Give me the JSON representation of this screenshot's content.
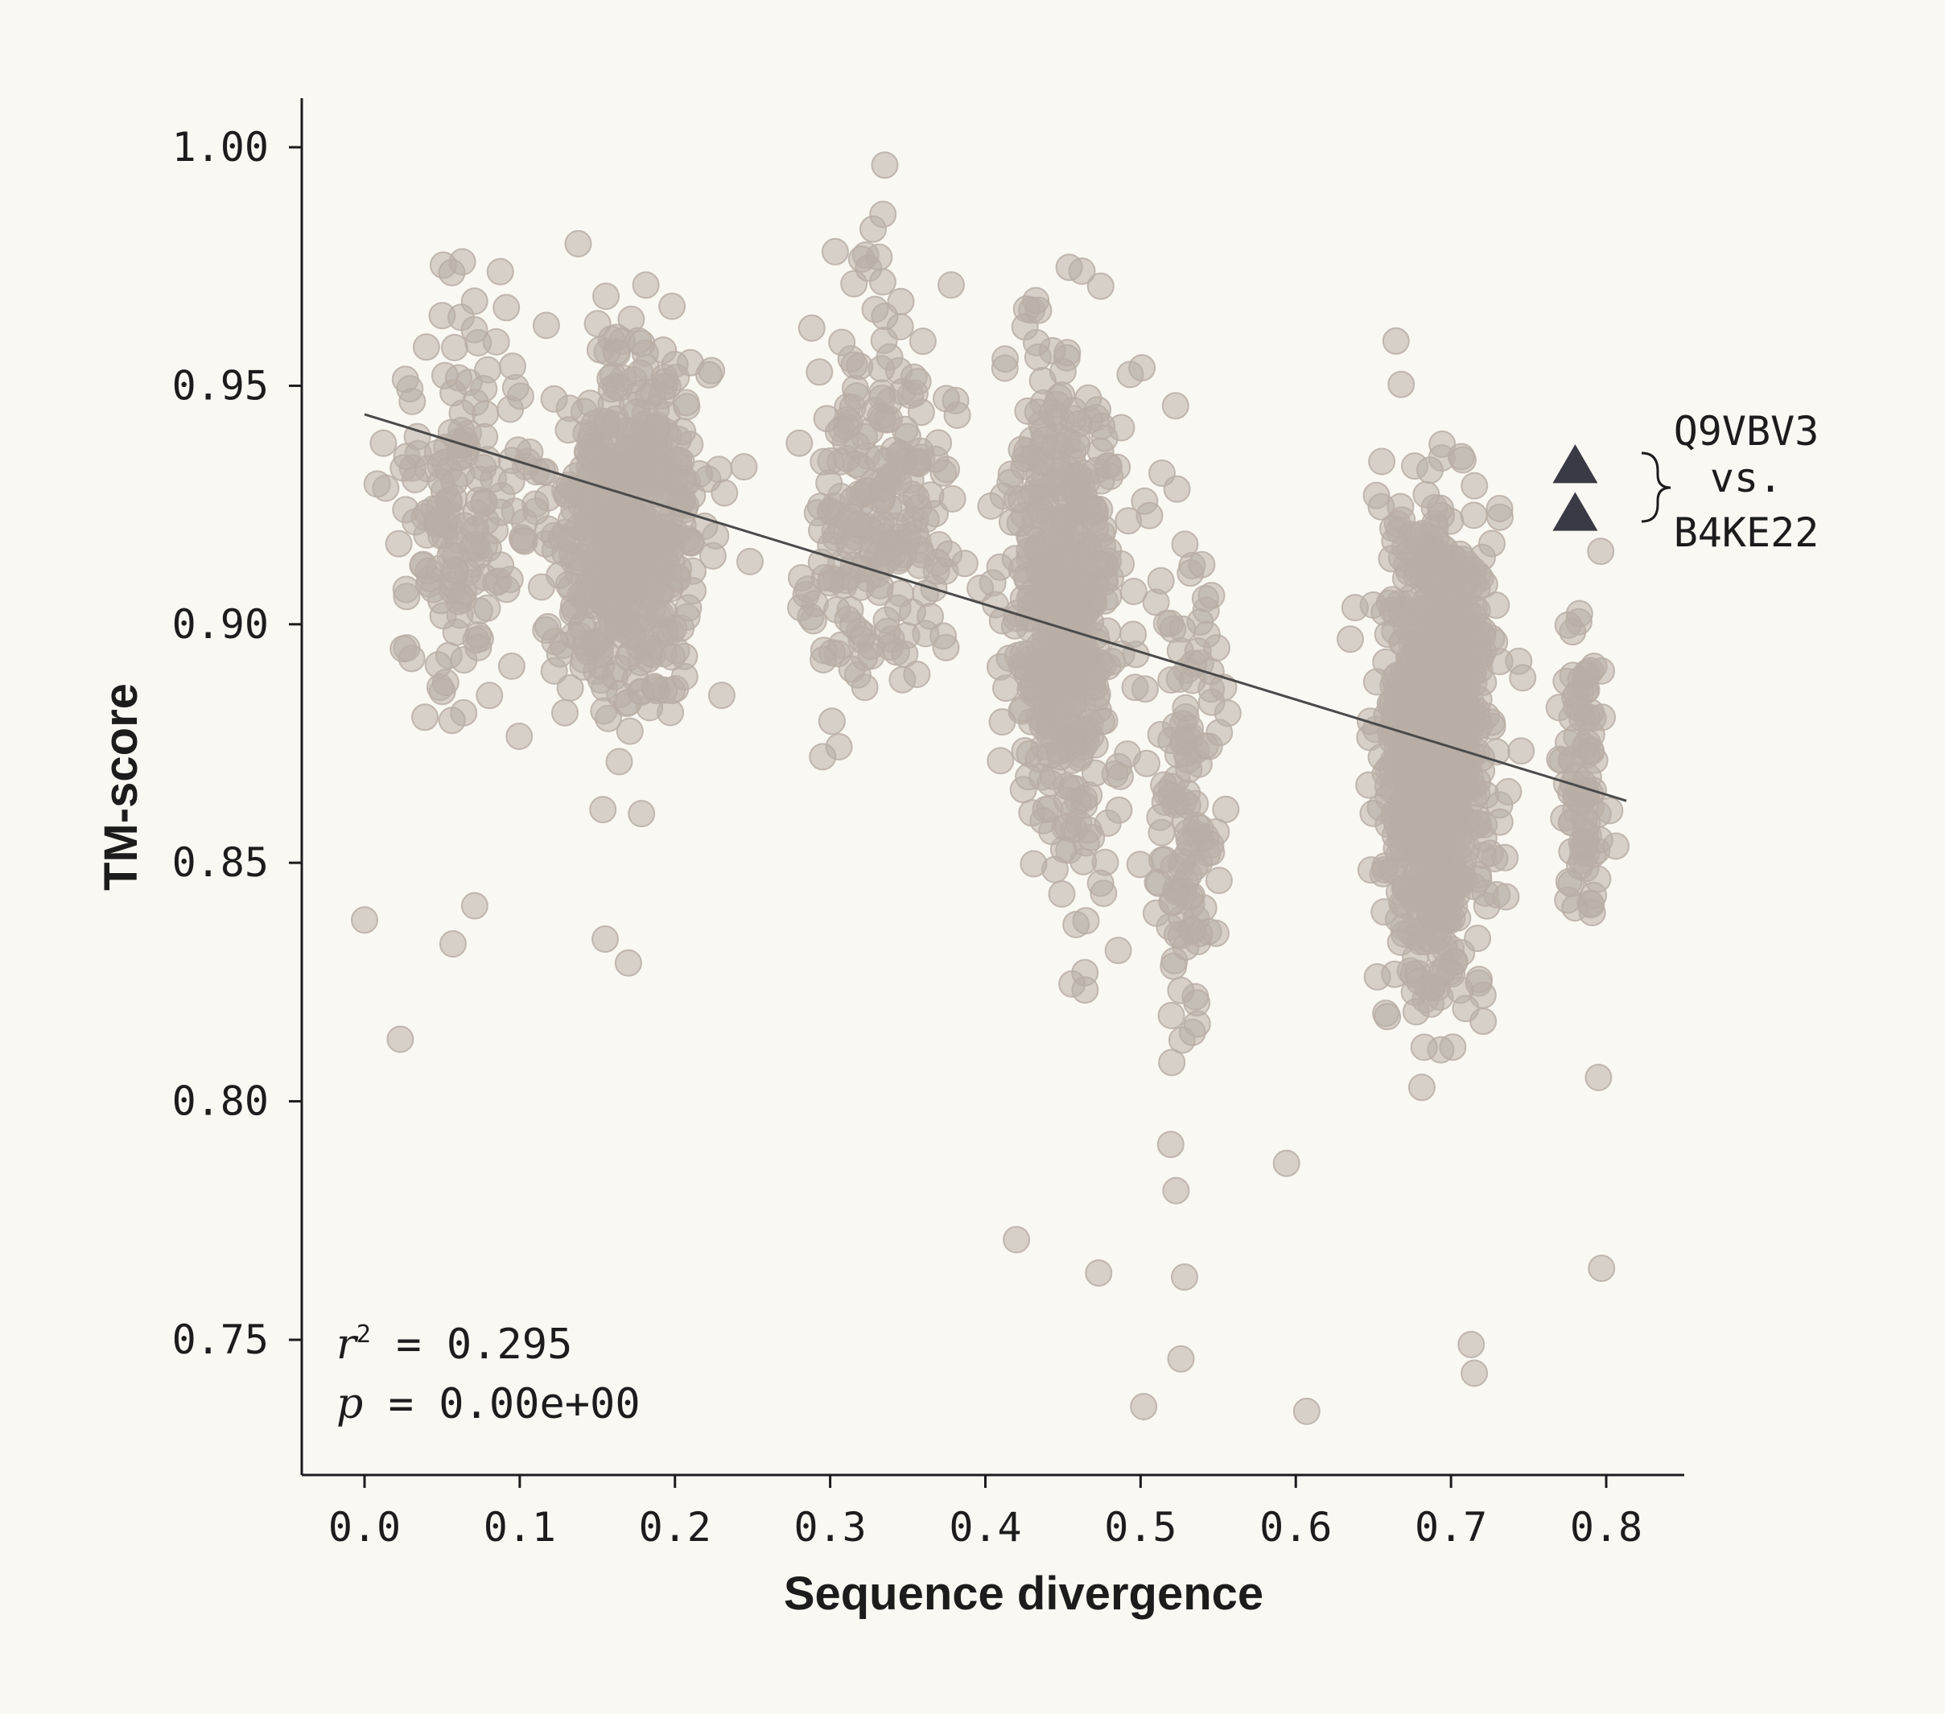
{
  "chart_data": {
    "type": "scatter",
    "xlabel": "Sequence divergence",
    "ylabel": "TM-score",
    "xlim": [
      -0.04,
      0.85
    ],
    "ylim": [
      0.72,
      1.01
    ],
    "x_ticks": [
      "0.0",
      "0.1",
      "0.2",
      "0.3",
      "0.4",
      "0.5",
      "0.6",
      "0.7",
      "0.8"
    ],
    "y_ticks": [
      "0.75",
      "0.80",
      "0.85",
      "0.90",
      "0.95",
      "1.00"
    ],
    "grid": false,
    "point_color": "#b8aea5",
    "highlight_color": "#3a3a45",
    "line_color": "#4a4a4a",
    "clusters": [
      {
        "x_center": 0.06,
        "x_spread": 0.04,
        "y_center": 0.925,
        "y_spread": 0.035,
        "count": 160
      },
      {
        "x_center": 0.17,
        "x_spread": 0.045,
        "y_center": 0.92,
        "y_spread": 0.03,
        "count": 520
      },
      {
        "x_center": 0.33,
        "x_spread": 0.04,
        "y_center": 0.925,
        "y_spread": 0.035,
        "count": 230
      },
      {
        "x_center": 0.45,
        "x_spread": 0.035,
        "y_center": 0.905,
        "y_spread": 0.045,
        "count": 480
      },
      {
        "x_center": 0.53,
        "x_spread": 0.02,
        "y_center": 0.86,
        "y_spread": 0.05,
        "count": 130
      },
      {
        "x_center": 0.69,
        "x_spread": 0.03,
        "y_center": 0.875,
        "y_spread": 0.04,
        "count": 900
      },
      {
        "x_center": 0.785,
        "x_spread": 0.015,
        "y_center": 0.87,
        "y_spread": 0.03,
        "count": 90
      }
    ],
    "outlier_points": [
      {
        "x": 0.0,
        "y": 0.838
      },
      {
        "x": 0.023,
        "y": 0.813
      },
      {
        "x": 0.057,
        "y": 0.833
      },
      {
        "x": 0.071,
        "y": 0.841
      },
      {
        "x": 0.155,
        "y": 0.834
      },
      {
        "x": 0.17,
        "y": 0.829
      },
      {
        "x": 0.502,
        "y": 0.736
      },
      {
        "x": 0.526,
        "y": 0.746
      },
      {
        "x": 0.607,
        "y": 0.735
      },
      {
        "x": 0.42,
        "y": 0.771
      },
      {
        "x": 0.473,
        "y": 0.764
      },
      {
        "x": 0.594,
        "y": 0.787
      },
      {
        "x": 0.715,
        "y": 0.743
      },
      {
        "x": 0.713,
        "y": 0.749
      },
      {
        "x": 0.797,
        "y": 0.765
      },
      {
        "x": 0.795,
        "y": 0.805
      }
    ],
    "regression_line": {
      "x1": 0.0,
      "y1": 0.944,
      "x2": 0.813,
      "y2": 0.863
    },
    "highlight_points": [
      {
        "x": 0.78,
        "y": 0.933
      },
      {
        "x": 0.78,
        "y": 0.923
      }
    ],
    "annotation": {
      "line1": "Q9VBV3",
      "line2": "vs.",
      "line3": "B4KE22"
    },
    "stats": {
      "r2_symbol": "r",
      "r2_sup": "2",
      "r2_value": " = 0.295",
      "p_symbol": "p",
      "p_value": " = 0.00e+00"
    }
  }
}
